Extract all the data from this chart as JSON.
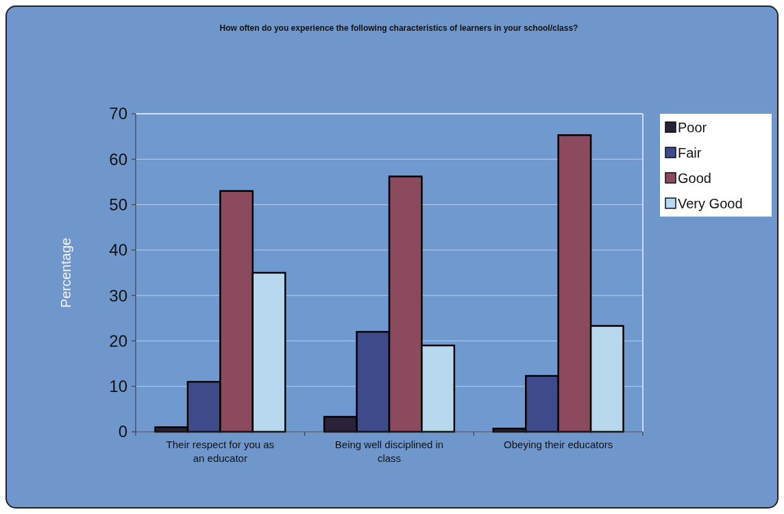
{
  "chart_data": {
    "type": "bar",
    "title": "How often do you experience the following characteristics of learners in your school/class?",
    "ylabel": "Percentage",
    "categories": [
      "Their respect for you as an educator",
      "Being well disciplined in class",
      "Obeying their educators"
    ],
    "series": [
      {
        "name": "Poor",
        "color": "#2a2238",
        "values": [
          1,
          3.3,
          0.7
        ]
      },
      {
        "name": "Fair",
        "color": "#3f4a8a",
        "values": [
          11,
          22,
          12.3
        ]
      },
      {
        "name": "Good",
        "color": "#8b4a5e",
        "values": [
          53,
          56.2,
          65.3
        ]
      },
      {
        "name": "Very Good",
        "color": "#b8d8ee",
        "values": [
          35,
          19,
          23.3
        ]
      }
    ],
    "ylim": [
      0,
      70
    ],
    "yticks": [
      0,
      10,
      20,
      30,
      40,
      50,
      60,
      70
    ],
    "grid": "y",
    "legend": "right"
  }
}
